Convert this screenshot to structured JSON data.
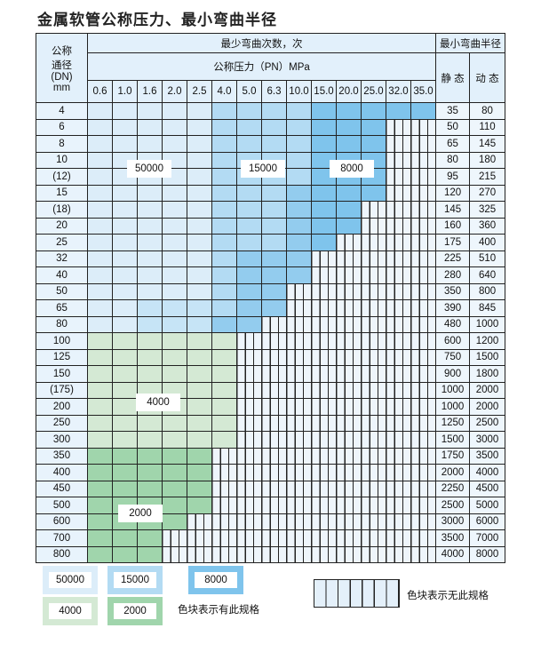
{
  "title": "金属软管公称压力、最小弯曲半径",
  "header": {
    "dn_label": [
      "公称",
      "通径",
      "(DN)",
      "mm"
    ],
    "cycles_label": "最少弯曲次数，次",
    "pressure_label": "公称压力（PN）MPa",
    "radius_label": "最小弯曲半径",
    "static_label": "静 态",
    "dynamic_label": "动 态",
    "pressures": [
      "0.6",
      "1.0",
      "1.6",
      "2.0",
      "2.5",
      "4.0",
      "5.0",
      "6.3",
      "10.0",
      "15.0",
      "20.0",
      "25.0",
      "32.0",
      "35.0"
    ]
  },
  "cell_legend": {
    "a": "50000",
    "A": "50000",
    "b": "15000",
    "B": "15000",
    "c": "8000",
    "d": "4000",
    "e": "2000",
    "x": "无此规格"
  },
  "rows": [
    {
      "dn": "4",
      "cells": "aaaaabbbbccccc",
      "static": "35",
      "dynamic": "80"
    },
    {
      "dn": "6",
      "cells": "aaaaabbbbcccxx",
      "static": "50",
      "dynamic": "110"
    },
    {
      "dn": "8",
      "cells": "aaaaabbbbcccxx",
      "static": "65",
      "dynamic": "145"
    },
    {
      "dn": "10",
      "cells": "aaaaabbbbcccxx",
      "static": "80",
      "dynamic": "180"
    },
    {
      "dn": "(12)",
      "cells": "aaaaabbbbcccxx",
      "static": "95",
      "dynamic": "215"
    },
    {
      "dn": "15",
      "cells": "aaaaabbbBcccxx",
      "static": "120",
      "dynamic": "270"
    },
    {
      "dn": "(18)",
      "cells": "aaaaabbbBccxxx",
      "static": "145",
      "dynamic": "325"
    },
    {
      "dn": "20",
      "cells": "aaaaabbbBccxxx",
      "static": "160",
      "dynamic": "360"
    },
    {
      "dn": "25",
      "cells": "aaaaabbbBcxxxx",
      "static": "175",
      "dynamic": "400"
    },
    {
      "dn": "32",
      "cells": "aaaaabBBBxxxxx",
      "static": "225",
      "dynamic": "510"
    },
    {
      "dn": "40",
      "cells": "aaaaabBBBxxxxx",
      "static": "280",
      "dynamic": "640"
    },
    {
      "dn": "50",
      "cells": "aaaaabBBxxxxxx",
      "static": "350",
      "dynamic": "800"
    },
    {
      "dn": "65",
      "cells": "aaAAAbBBxxxxxx",
      "static": "390",
      "dynamic": "845"
    },
    {
      "dn": "80",
      "cells": "aaAAABBxxxxxxx",
      "static": "480",
      "dynamic": "1000"
    },
    {
      "dn": "100",
      "cells": "ddddddxxxxxxxx",
      "static": "600",
      "dynamic": "1200"
    },
    {
      "dn": "125",
      "cells": "ddddddxxxxxxxx",
      "static": "750",
      "dynamic": "1500"
    },
    {
      "dn": "150",
      "cells": "ddddddxxxxxxxx",
      "static": "900",
      "dynamic": "1800"
    },
    {
      "dn": "(175)",
      "cells": "ddddddxxxxxxxx",
      "static": "1000",
      "dynamic": "2000"
    },
    {
      "dn": "200",
      "cells": "ddddddxxxxxxxx",
      "static": "1000",
      "dynamic": "2000"
    },
    {
      "dn": "250",
      "cells": "ddddddxxxxxxxx",
      "static": "1250",
      "dynamic": "2500"
    },
    {
      "dn": "300",
      "cells": "ddddddxxxxxxxx",
      "static": "1500",
      "dynamic": "3000"
    },
    {
      "dn": "350",
      "cells": "eeeeexxxxxxxxx",
      "static": "1750",
      "dynamic": "3500"
    },
    {
      "dn": "400",
      "cells": "eeeeexxxxxxxxx",
      "static": "2000",
      "dynamic": "4000"
    },
    {
      "dn": "450",
      "cells": "eeeeexxxxxxxxx",
      "static": "2250",
      "dynamic": "4500"
    },
    {
      "dn": "500",
      "cells": "eeeeexxxxxxxxx",
      "static": "2500",
      "dynamic": "5000"
    },
    {
      "dn": "600",
      "cells": "eeeexxxxxxxxxx",
      "static": "3000",
      "dynamic": "6000"
    },
    {
      "dn": "700",
      "cells": "eeexxxxxxxxxxx",
      "static": "3500",
      "dynamic": "7000"
    },
    {
      "dn": "800",
      "cells": "eeexxxxxxxxxxx",
      "static": "4000",
      "dynamic": "8000"
    }
  ],
  "region_labels": {
    "r50000": "50000",
    "r15000": "15000",
    "r8000": "8000",
    "r4000": "4000",
    "r2000": "2000"
  },
  "legend": {
    "items": [
      "50000",
      "15000",
      "8000",
      "4000",
      "2000"
    ],
    "colors": {
      "50000": "#dcedf9",
      "15000": "#b3dbf3",
      "8000": "#7fc4ec",
      "4000": "#d4e9d4",
      "2000": "#a0d5ac"
    },
    "available_text": "色块表示有此规格",
    "unavailable_text": "色块表示无此规格"
  }
}
